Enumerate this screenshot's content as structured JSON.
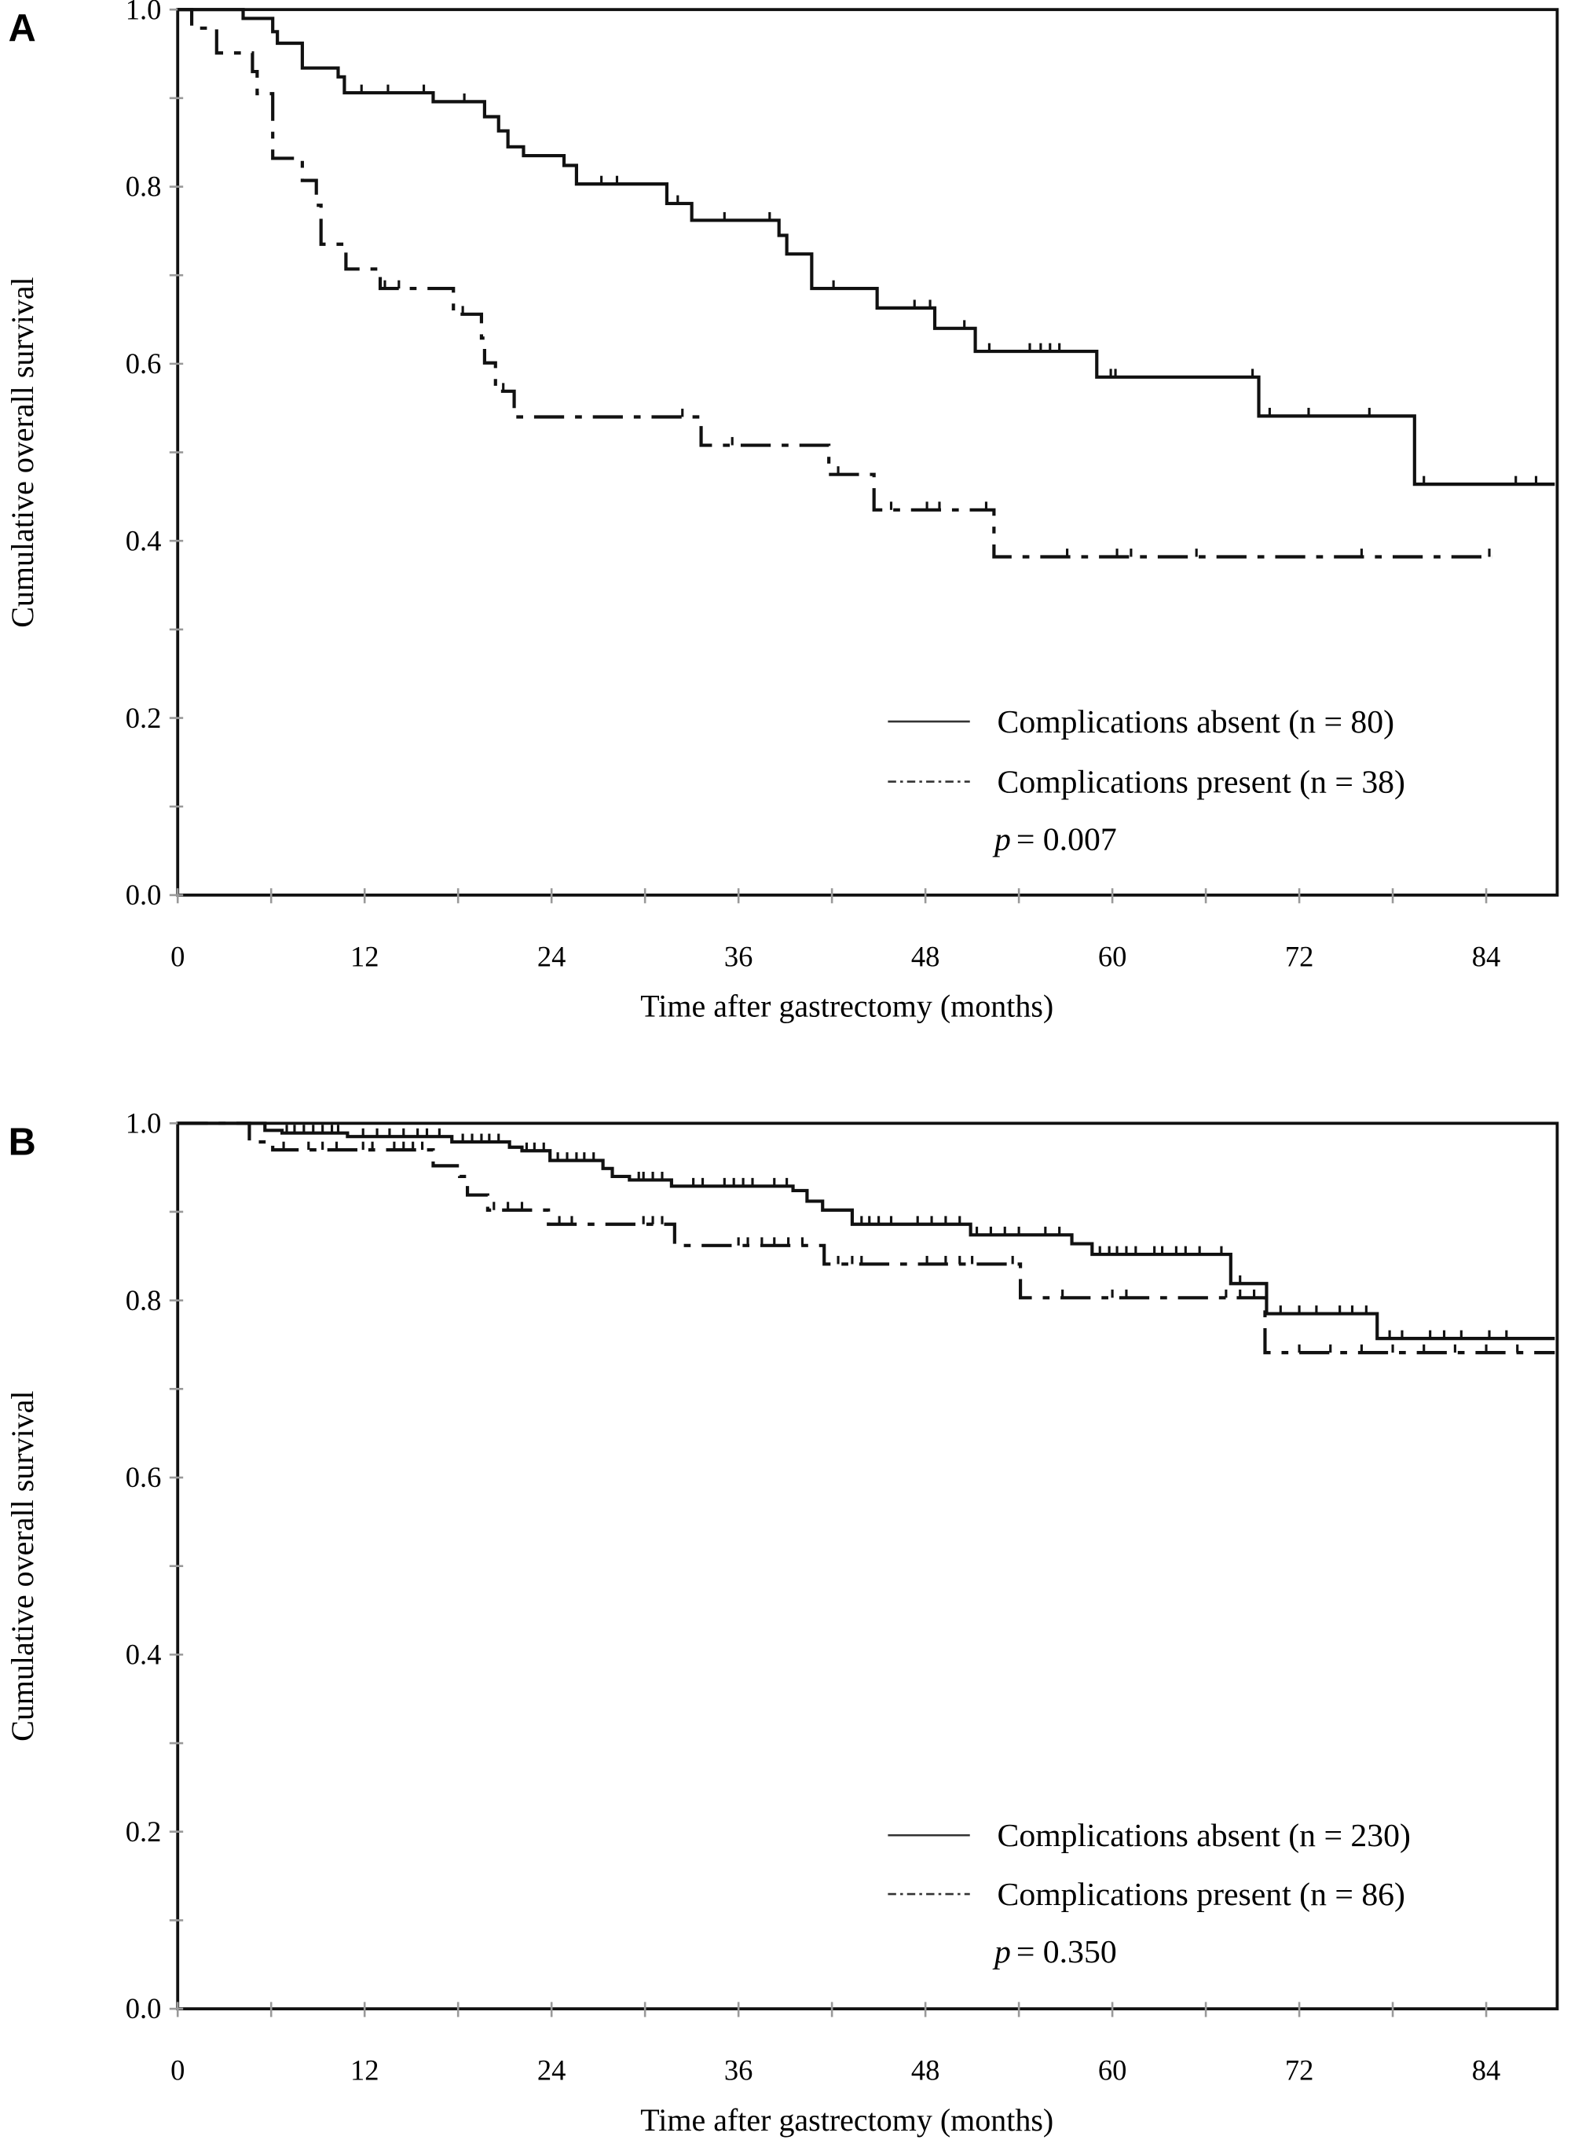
{
  "chart_data": [
    {
      "type": "line",
      "subtype": "kaplan-meier step",
      "panel_label": "A",
      "xlabel": "Time after gastrectomy (months)",
      "ylabel": "Cumulative overall survival",
      "xlim": [
        0,
        88.4
      ],
      "ylim": [
        0,
        1
      ],
      "xticks": [
        0,
        12,
        24,
        36,
        48,
        60,
        72,
        84
      ],
      "xtick_labels": [
        "0",
        "12",
        "24",
        "36",
        "48",
        "60",
        "72",
        "84"
      ],
      "yticks": [
        0,
        0.2,
        0.4,
        0.6,
        0.8,
        1.0
      ],
      "ytick_labels": [
        "0.0",
        "0.2",
        "0.4",
        "0.6",
        "0.8",
        "1.0"
      ],
      "grid": false,
      "legend_position": "bottom-right",
      "annotation": {
        "p_symbol": "p",
        "p_text": "= 0.007"
      },
      "series": [
        {
          "name": "Complications absent (n = 80)",
          "style": "solid",
          "end": 88.4,
          "steps": [
            [
              4.2,
              0.99
            ],
            [
              6.1,
              0.975
            ],
            [
              6.4,
              0.962
            ],
            [
              8.0,
              0.934
            ],
            [
              10.3,
              0.924
            ],
            [
              10.7,
              0.906
            ],
            [
              16.4,
              0.896
            ],
            [
              19.7,
              0.879
            ],
            [
              20.6,
              0.863
            ],
            [
              21.2,
              0.845
            ],
            [
              22.2,
              0.835
            ],
            [
              24.8,
              0.824
            ],
            [
              25.6,
              0.803
            ],
            [
              31.4,
              0.781
            ],
            [
              33.0,
              0.762
            ],
            [
              38.6,
              0.745
            ],
            [
              39.1,
              0.724
            ],
            [
              40.7,
              0.685
            ],
            [
              44.9,
              0.663
            ],
            [
              48.6,
              0.64
            ],
            [
              51.2,
              0.614
            ],
            [
              59.0,
              0.585
            ],
            [
              69.4,
              0.541
            ],
            [
              79.4,
              0.464
            ]
          ],
          "censored": [
            11.8,
            13.5,
            15.8,
            18.4,
            27.2,
            28.2,
            32.1,
            35.1,
            38.0,
            42.1,
            47.3,
            48.3,
            50.5,
            52.1,
            54.7,
            55.4,
            56.0,
            56.6,
            59.9,
            60.2,
            69.0,
            70.1,
            72.6,
            76.5,
            80.0,
            85.9,
            87.2
          ]
        },
        {
          "name": "Complications present (n = 38)",
          "style": "dash-dot",
          "end": 84.4,
          "steps": [
            [
              0.9,
              0.979
            ],
            [
              2.5,
              0.951
            ],
            [
              4.8,
              0.93
            ],
            [
              5.1,
              0.905
            ],
            [
              6.1,
              0.832
            ],
            [
              8.0,
              0.807
            ],
            [
              8.9,
              0.779
            ],
            [
              9.2,
              0.735
            ],
            [
              10.8,
              0.707
            ],
            [
              13.0,
              0.685
            ],
            [
              17.7,
              0.656
            ],
            [
              19.5,
              0.629
            ],
            [
              19.7,
              0.601
            ],
            [
              20.4,
              0.569
            ],
            [
              21.6,
              0.54
            ],
            [
              33.6,
              0.508
            ],
            [
              41.8,
              0.475
            ],
            [
              44.7,
              0.435
            ],
            [
              52.4,
              0.382
            ]
          ],
          "censored": [
            13.3,
            14.2,
            18.3,
            20.9,
            32.4,
            35.6,
            42.4,
            45.8,
            48.1,
            48.9,
            51.9,
            57.1,
            60.3,
            61.2,
            65.4,
            76.0,
            84.2
          ]
        }
      ]
    },
    {
      "type": "line",
      "subtype": "kaplan-meier step",
      "panel_label": "B",
      "xlabel": "Time after gastrectomy (months)",
      "ylabel": "Cumulative overall survival",
      "xlim": [
        0,
        88.4
      ],
      "ylim": [
        0,
        1
      ],
      "xticks": [
        0,
        12,
        24,
        36,
        48,
        60,
        72,
        84
      ],
      "xtick_labels": [
        "0",
        "12",
        "24",
        "36",
        "48",
        "60",
        "72",
        "84"
      ],
      "yticks": [
        0,
        0.2,
        0.4,
        0.6,
        0.8,
        1.0
      ],
      "ytick_labels": [
        "0.0",
        "0.2",
        "0.4",
        "0.6",
        "0.8",
        "1.0"
      ],
      "grid": false,
      "legend_position": "bottom-right",
      "annotation": {
        "p_symbol": "p",
        "p_text": "= 0.350"
      },
      "series": [
        {
          "name": "Complications absent (n = 230)",
          "style": "solid",
          "end": 88.4,
          "steps": [
            [
              5.6,
              0.992
            ],
            [
              6.7,
              0.989
            ],
            [
              10.9,
              0.985
            ],
            [
              17.6,
              0.979
            ],
            [
              21.3,
              0.973
            ],
            [
              22.1,
              0.969
            ],
            [
              23.9,
              0.958
            ],
            [
              27.3,
              0.949
            ],
            [
              27.9,
              0.94
            ],
            [
              29.0,
              0.936
            ],
            [
              31.7,
              0.929
            ],
            [
              39.5,
              0.924
            ],
            [
              40.4,
              0.912
            ],
            [
              41.4,
              0.902
            ],
            [
              43.3,
              0.886
            ],
            [
              50.9,
              0.874
            ],
            [
              57.4,
              0.864
            ],
            [
              58.7,
              0.852
            ],
            [
              67.6,
              0.819
            ],
            [
              69.9,
              0.785
            ],
            [
              77.0,
              0.757
            ]
          ],
          "censored": [
            7.0,
            7.5,
            8.1,
            8.7,
            9.3,
            9.9,
            10.3,
            11.9,
            12.8,
            13.6,
            14.5,
            15.4,
            16.0,
            16.8,
            18.3,
            18.9,
            19.5,
            20.0,
            20.6,
            22.4,
            22.9,
            23.5,
            24.4,
            25.0,
            25.6,
            26.1,
            26.7,
            29.6,
            29.9,
            30.5,
            31.1,
            33.1,
            33.7,
            35.1,
            35.7,
            36.3,
            36.9,
            38.3,
            39.1,
            43.9,
            44.4,
            45.0,
            45.8,
            47.5,
            48.4,
            49.3,
            50.2,
            51.3,
            52.2,
            53.1,
            54.0,
            55.7,
            56.6,
            59.2,
            59.8,
            60.3,
            60.9,
            61.5,
            62.7,
            63.2,
            64.1,
            64.7,
            65.6,
            67.0,
            68.2,
            70.8,
            72.0,
            73.1,
            74.6,
            75.4,
            76.3,
            77.8,
            78.6,
            80.4,
            81.3,
            82.4,
            84.2,
            85.3
          ]
        },
        {
          "name": "Complications present (n = 86)",
          "style": "dash-dot",
          "end": 88.4,
          "steps": [
            [
              4.6,
              0.979
            ],
            [
              6.1,
              0.97
            ],
            [
              16.4,
              0.952
            ],
            [
              18.1,
              0.94
            ],
            [
              18.6,
              0.919
            ],
            [
              19.9,
              0.902
            ],
            [
              23.8,
              0.886
            ],
            [
              31.9,
              0.862
            ],
            [
              41.5,
              0.841
            ],
            [
              54.1,
              0.803
            ],
            [
              69.8,
              0.741
            ]
          ],
          "censored": [
            6.8,
            8.4,
            9.3,
            10.2,
            11.9,
            12.5,
            13.9,
            14.5,
            15.1,
            15.7,
            20.3,
            21.2,
            22.1,
            24.5,
            25.3,
            29.9,
            30.5,
            31.1,
            36.0,
            36.6,
            37.5,
            38.3,
            39.2,
            40.1,
            42.4,
            43.3,
            43.9,
            48.1,
            49.3,
            50.2,
            51.0,
            53.6,
            56.8,
            60.0,
            60.9,
            67.3,
            68.2,
            69.1,
            72.0,
            74.0,
            76.0,
            78.0,
            80.0,
            82.0,
            84.0,
            86.0
          ]
        }
      ]
    }
  ]
}
